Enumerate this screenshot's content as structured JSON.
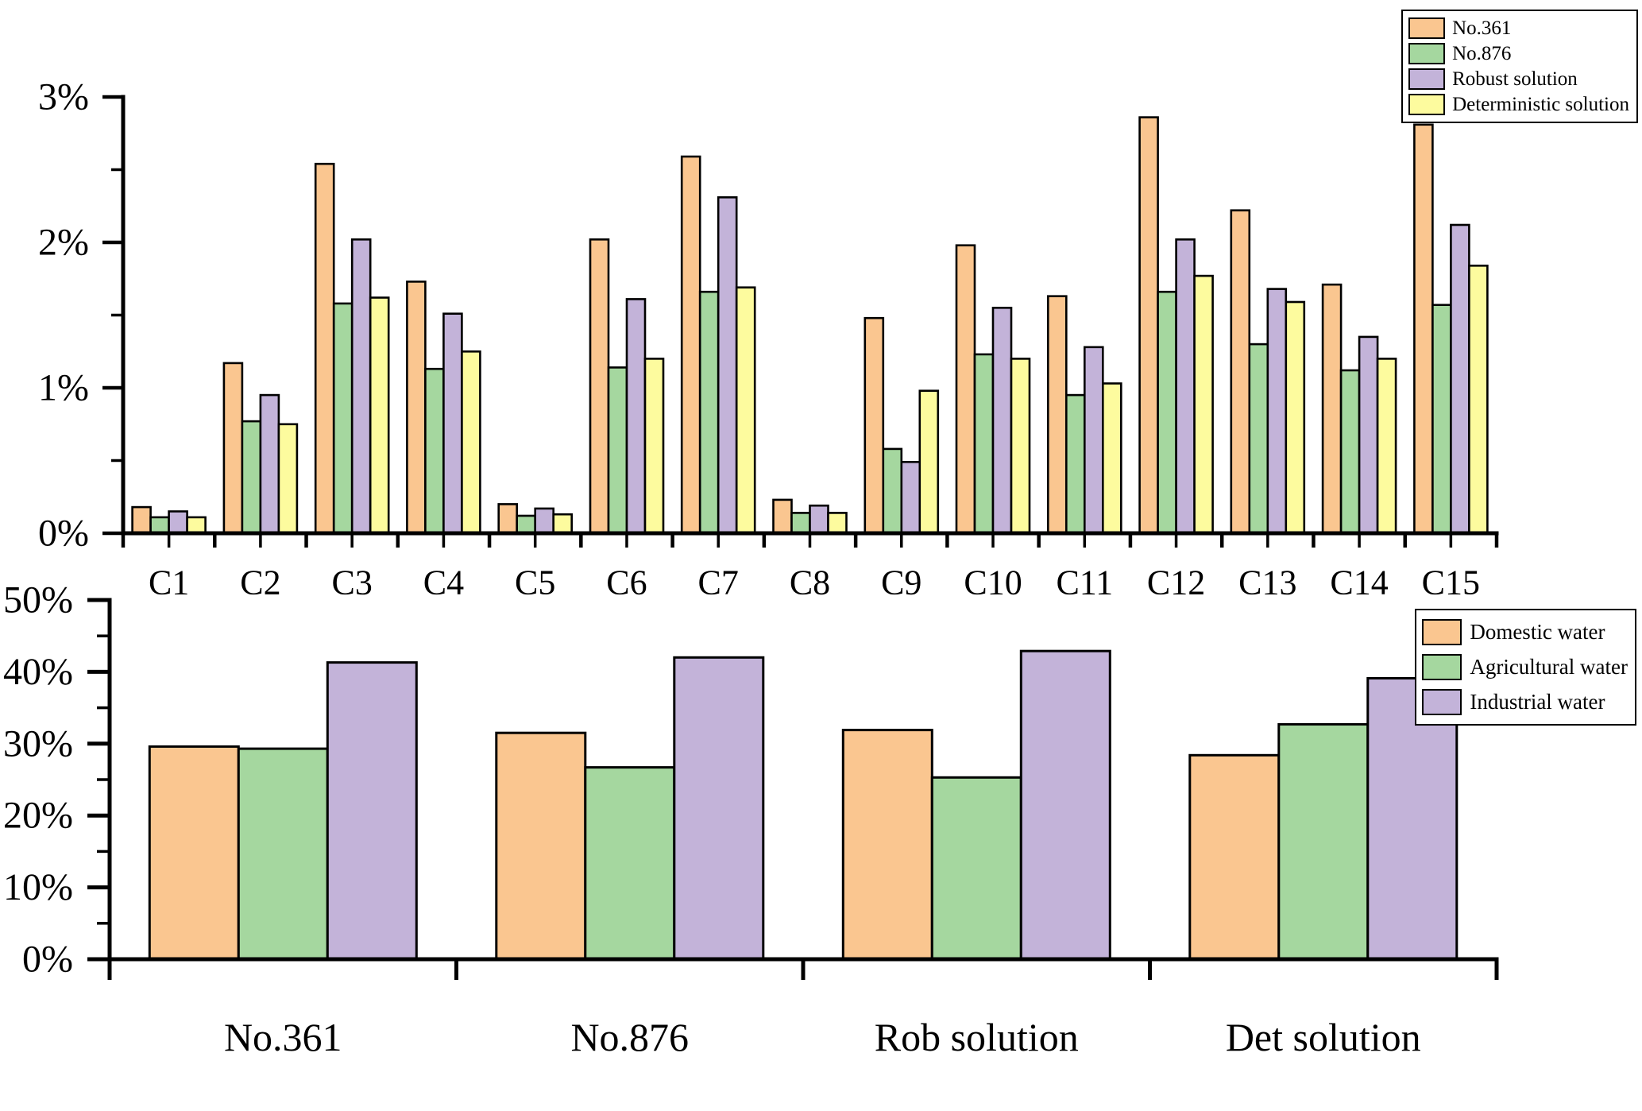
{
  "colors": {
    "orange": "#FAC690",
    "green": "#A5D79F",
    "purple": "#C3B3D9",
    "yellow": "#FDFB9E",
    "axis": "#000000",
    "background": "#FFFFFF"
  },
  "chart_data": [
    {
      "type": "bar",
      "title": "",
      "xlabel": "",
      "ylabel": "",
      "categories": [
        "C1",
        "C2",
        "C3",
        "C4",
        "C5",
        "C6",
        "C7",
        "C8",
        "C9",
        "C10",
        "C11",
        "C12",
        "C13",
        "C14",
        "C15"
      ],
      "series": [
        {
          "name": "No.361",
          "color": "#FAC690",
          "values": [
            0.18,
            1.17,
            2.54,
            1.73,
            0.2,
            2.02,
            2.59,
            0.23,
            1.48,
            1.98,
            1.63,
            2.86,
            2.22,
            1.71,
            2.81
          ]
        },
        {
          "name": "No.876",
          "color": "#A5D79F",
          "values": [
            0.11,
            0.77,
            1.58,
            1.13,
            0.12,
            1.14,
            1.66,
            0.14,
            0.58,
            1.23,
            0.95,
            1.66,
            1.3,
            1.12,
            1.57
          ]
        },
        {
          "name": "Robust solution",
          "color": "#C3B3D9",
          "values": [
            0.15,
            0.95,
            2.02,
            1.51,
            0.17,
            1.61,
            2.31,
            0.19,
            0.49,
            1.55,
            1.28,
            2.02,
            1.68,
            1.35,
            2.12
          ]
        },
        {
          "name": "Deterministic solution",
          "color": "#FDFB9E",
          "values": [
            0.11,
            0.75,
            1.62,
            1.25,
            0.13,
            1.2,
            1.69,
            0.14,
            0.98,
            1.2,
            1.03,
            1.77,
            1.59,
            1.2,
            1.84
          ]
        }
      ],
      "y_axis": {
        "min": 0,
        "max": 3,
        "major_ticks": [
          0,
          1,
          2,
          3
        ],
        "major_tick_labels": [
          "0%",
          "1%",
          "2%",
          "3%"
        ],
        "minor_ticks": [
          0.5,
          1.5,
          2.5
        ]
      },
      "legend_position": "top-right",
      "grid": false
    },
    {
      "type": "bar",
      "title": "",
      "xlabel": "",
      "ylabel": "",
      "categories": [
        "No.361",
        "No.876",
        "Rob solution",
        "Det solution"
      ],
      "series": [
        {
          "name": "Domestic water",
          "color": "#FAC690",
          "values": [
            29.6,
            31.5,
            31.9,
            28.4
          ]
        },
        {
          "name": "Agricultural water",
          "color": "#A5D79F",
          "values": [
            29.3,
            26.7,
            25.3,
            32.7
          ]
        },
        {
          "name": "Industrial water",
          "color": "#C3B3D9",
          "values": [
            41.3,
            42.0,
            42.9,
            39.1
          ]
        }
      ],
      "y_axis": {
        "min": 0,
        "max": 50,
        "major_ticks": [
          0,
          10,
          20,
          30,
          40,
          50
        ],
        "major_tick_labels": [
          "0%",
          "10%",
          "20%",
          "30%",
          "40%",
          "50%"
        ],
        "minor_ticks": [
          5,
          15,
          25,
          35,
          45
        ]
      },
      "legend_position": "top-right",
      "grid": false
    }
  ]
}
